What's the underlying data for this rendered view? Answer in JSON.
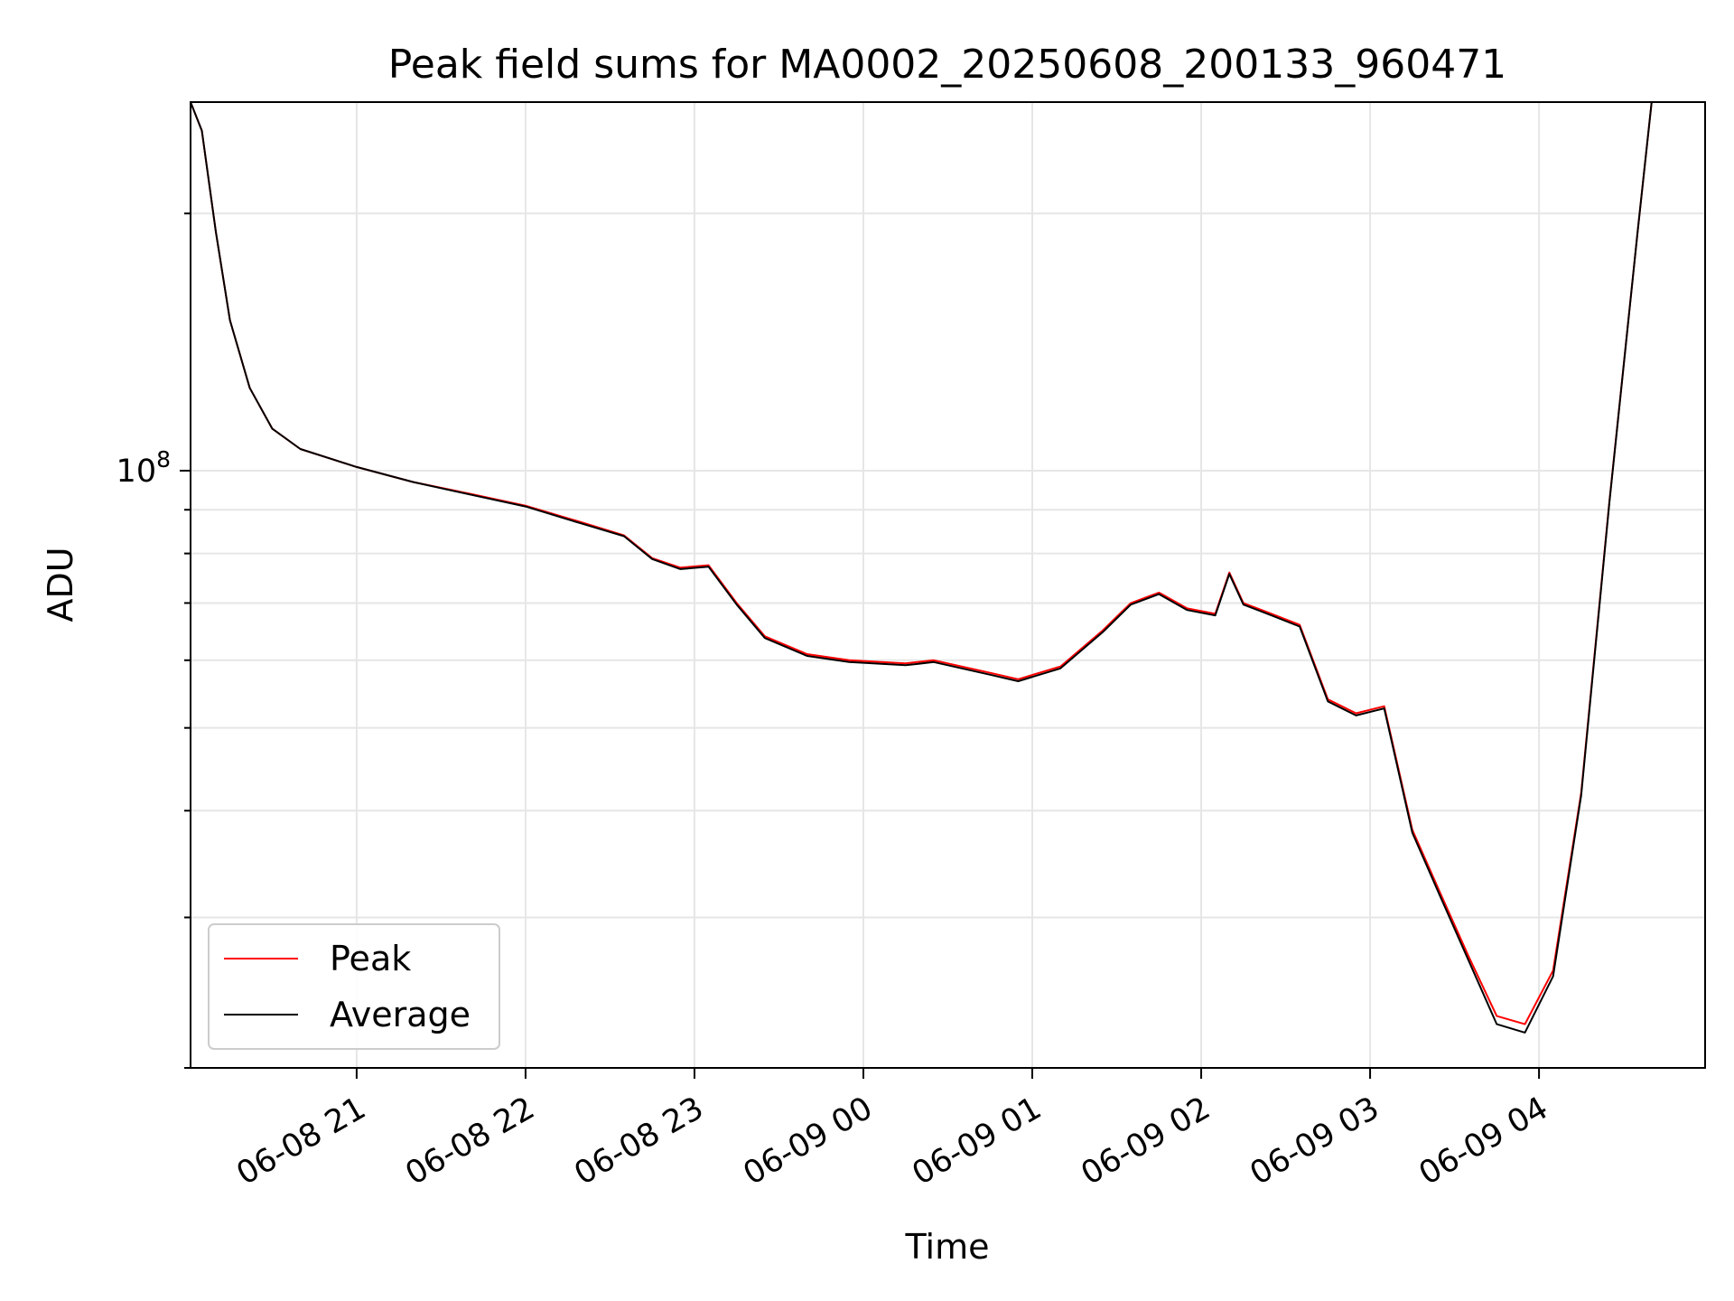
{
  "chart_data": {
    "type": "line",
    "title": "Peak field sums for MA0002_20250608_200133_960471",
    "xlabel": "Time",
    "ylabel": "ADU",
    "y_scale": "log",
    "y_tick_labels": [
      {
        "base": "10",
        "exp": "8",
        "value": 100000000
      }
    ],
    "x_tick_labels": [
      "06-08 21",
      "06-08 22",
      "06-08 23",
      "06-09 00",
      "06-09 01",
      "06-09 02",
      "06-09 03",
      "06-09 04"
    ],
    "x_ticks": [
      "2025-06-08 21:00",
      "2025-06-08 22:00",
      "2025-06-08 23:00",
      "2025-06-09 00:00",
      "2025-06-09 01:00",
      "2025-06-09 02:00",
      "2025-06-09 03:00",
      "2025-06-09 04:00"
    ],
    "xlim": [
      "2025-06-08 20:01",
      "2025-06-09 04:59"
    ],
    "ylim": [
      20000000,
      270000000
    ],
    "grid": true,
    "legend_position": "lower-left",
    "series": [
      {
        "name": "Peak",
        "color": "#ff0000",
        "x": [
          "2025-06-08 20:01",
          "2025-06-08 20:05",
          "2025-06-08 20:10",
          "2025-06-08 20:15",
          "2025-06-08 20:22",
          "2025-06-08 20:30",
          "2025-06-08 20:40",
          "2025-06-08 21:00",
          "2025-06-08 21:20",
          "2025-06-08 21:40",
          "2025-06-08 22:00",
          "2025-06-08 22:20",
          "2025-06-08 22:35",
          "2025-06-08 22:45",
          "2025-06-08 22:55",
          "2025-06-08 23:05",
          "2025-06-08 23:15",
          "2025-06-08 23:25",
          "2025-06-08 23:40",
          "2025-06-08 23:55",
          "2025-06-09 00:15",
          "2025-06-09 00:25",
          "2025-06-09 00:45",
          "2025-06-09 00:55",
          "2025-06-09 01:10",
          "2025-06-09 01:25",
          "2025-06-09 01:35",
          "2025-06-09 01:45",
          "2025-06-09 01:55",
          "2025-06-09 02:05",
          "2025-06-09 02:10",
          "2025-06-09 02:15",
          "2025-06-09 02:25",
          "2025-06-09 02:35",
          "2025-06-09 02:45",
          "2025-06-09 02:55",
          "2025-06-09 03:05",
          "2025-06-09 03:15",
          "2025-06-09 03:25",
          "2025-06-09 03:35",
          "2025-06-09 03:45",
          "2025-06-09 03:55",
          "2025-06-09 04:05",
          "2025-06-09 04:15",
          "2025-06-09 04:25",
          "2025-06-09 04:35",
          "2025-06-09 04:40"
        ],
        "y": [
          270000000,
          250000000,
          190000000,
          150000000,
          125000000,
          112000000,
          106000000,
          101000000,
          97000000,
          94000000,
          91000000,
          87000000,
          84000000,
          79000000,
          77000000,
          77500000,
          70000000,
          64000000,
          61000000,
          60000000,
          59500000,
          60000000,
          58000000,
          57000000,
          59000000,
          65000000,
          70000000,
          72000000,
          69000000,
          68000000,
          76000000,
          70000000,
          68000000,
          66000000,
          54000000,
          52000000,
          53000000,
          38000000,
          32000000,
          27000000,
          23000000,
          22500000,
          26000000,
          42000000,
          92000000,
          190000000,
          270000000
        ]
      },
      {
        "name": "Average",
        "color": "#000000",
        "x": [
          "2025-06-08 20:01",
          "2025-06-08 20:05",
          "2025-06-08 20:10",
          "2025-06-08 20:15",
          "2025-06-08 20:22",
          "2025-06-08 20:30",
          "2025-06-08 20:40",
          "2025-06-08 21:00",
          "2025-06-08 21:20",
          "2025-06-08 21:40",
          "2025-06-08 22:00",
          "2025-06-08 22:20",
          "2025-06-08 22:35",
          "2025-06-08 22:45",
          "2025-06-08 22:55",
          "2025-06-08 23:05",
          "2025-06-08 23:15",
          "2025-06-08 23:25",
          "2025-06-08 23:40",
          "2025-06-08 23:55",
          "2025-06-09 00:15",
          "2025-06-09 00:25",
          "2025-06-09 00:45",
          "2025-06-09 00:55",
          "2025-06-09 01:10",
          "2025-06-09 01:25",
          "2025-06-09 01:35",
          "2025-06-09 01:45",
          "2025-06-09 01:55",
          "2025-06-09 02:05",
          "2025-06-09 02:10",
          "2025-06-09 02:15",
          "2025-06-09 02:25",
          "2025-06-09 02:35",
          "2025-06-09 02:45",
          "2025-06-09 02:55",
          "2025-06-09 03:05",
          "2025-06-09 03:15",
          "2025-06-09 03:25",
          "2025-06-09 03:35",
          "2025-06-09 03:45",
          "2025-06-09 03:55",
          "2025-06-09 04:05",
          "2025-06-09 04:15",
          "2025-06-09 04:25",
          "2025-06-09 04:35",
          "2025-06-09 04:40"
        ],
        "y": [
          270000000,
          250000000,
          190000000,
          150000000,
          125000000,
          112000000,
          106000000,
          101000000,
          97000000,
          93800000,
          90800000,
          86700000,
          83800000,
          78800000,
          76700000,
          77200000,
          69700000,
          63700000,
          60700000,
          59700000,
          59200000,
          59700000,
          57700000,
          56700000,
          58700000,
          64700000,
          69700000,
          71700000,
          68700000,
          67700000,
          75700000,
          69700000,
          67700000,
          65700000,
          53700000,
          51700000,
          52700000,
          37700000,
          31700000,
          26700000,
          22500000,
          22000000,
          25600000,
          41700000,
          91700000,
          190000000,
          270000000
        ]
      }
    ]
  }
}
